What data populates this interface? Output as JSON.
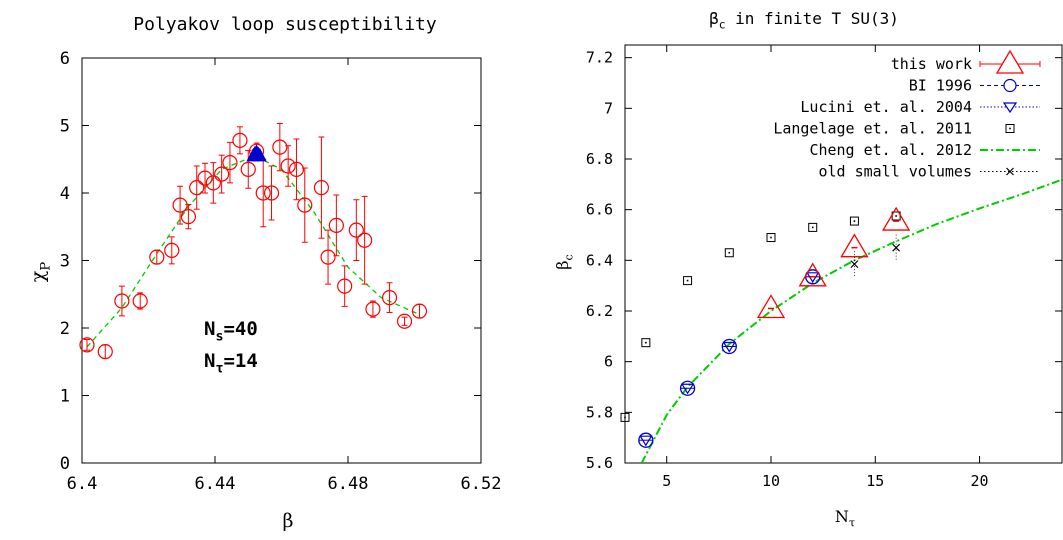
{
  "chart_data": [
    {
      "type": "scatter",
      "title": "Polyakov loop susceptibility",
      "xlabel": "β",
      "ylabel": "χ",
      "ylabel_sub": "P",
      "xlim": [
        6.4,
        6.52
      ],
      "ylim": [
        0,
        6
      ],
      "xticks": [
        6.4,
        6.44,
        6.48,
        6.52
      ],
      "xtick_labels": [
        "6.4",
        "6.44",
        "6.48",
        "6.52"
      ],
      "yticks": [
        0,
        1,
        2,
        3,
        4,
        5,
        6
      ],
      "ytick_labels": [
        "0",
        "1",
        "2",
        "3",
        "4",
        "5",
        "6"
      ],
      "grid": false,
      "annotations": [
        {
          "main": "N",
          "sub": "s",
          "rest": "=40"
        },
        {
          "main": "N",
          "sub": "τ",
          "rest": "=14"
        }
      ],
      "series": [
        {
          "marker": "circle",
          "color": "#ff0000",
          "x": [
            6.4015,
            6.407,
            6.412,
            6.4175,
            6.4225,
            6.427,
            6.4295,
            6.432,
            6.4345,
            6.437,
            6.4395,
            6.442,
            6.4445,
            6.4475,
            6.45,
            6.4525,
            6.4545,
            6.457,
            6.4595,
            6.462,
            6.4645,
            6.467,
            6.472,
            6.474,
            6.4765,
            6.479,
            6.4825,
            6.485,
            6.4875,
            6.4925,
            6.497,
            6.5015
          ],
          "y": [
            1.75,
            1.65,
            2.4,
            2.4,
            3.05,
            3.15,
            3.82,
            3.65,
            4.08,
            4.22,
            4.15,
            4.28,
            4.45,
            4.78,
            4.35,
            4.62,
            4.0,
            4.0,
            4.68,
            4.4,
            4.35,
            3.82,
            4.08,
            3.05,
            3.52,
            2.62,
            3.45,
            3.3,
            2.28,
            2.45,
            2.1,
            2.25
          ],
          "err": [
            0.08,
            0.1,
            0.22,
            0.12,
            0.1,
            0.2,
            0.28,
            0.18,
            0.32,
            0.22,
            0.3,
            0.28,
            0.3,
            0.2,
            0.28,
            0.12,
            0.5,
            0.4,
            0.35,
            0.3,
            0.45,
            0.55,
            0.75,
            0.4,
            0.45,
            0.3,
            0.45,
            0.65,
            0.12,
            0.22,
            0.06,
            0.1
          ]
        },
        {
          "marker": "triangle-up",
          "color": "#0000cc",
          "x": [
            6.4515,
            6.452,
            6.4525,
            6.453,
            6.4535
          ],
          "y": [
            4.55,
            4.58,
            4.6,
            4.57,
            4.55
          ]
        },
        {
          "type": "line",
          "style": "dashed",
          "color": "#00cc00",
          "x": [
            6.4015,
            6.412,
            6.4225,
            6.432,
            6.442,
            6.452,
            6.46,
            6.47,
            6.48,
            6.49,
            6.5015
          ],
          "y": [
            1.72,
            2.3,
            3.1,
            3.8,
            4.35,
            4.55,
            4.35,
            3.7,
            2.9,
            2.45,
            2.2
          ]
        }
      ]
    },
    {
      "type": "scatter",
      "title": "β",
      "title_sub": "c",
      "title_rest": " in finite T SU(3)",
      "xlabel": "N",
      "xlabel_sub": "τ",
      "ylabel": "β",
      "ylabel_sub": "c",
      "xlim": [
        3,
        24
      ],
      "ylim": [
        5.6,
        7.25
      ],
      "xticks": [
        5,
        10,
        15,
        20
      ],
      "xtick_labels": [
        "5",
        "10",
        "15",
        "20"
      ],
      "yticks": [
        5.6,
        5.8,
        6.0,
        6.2,
        6.4,
        6.6,
        6.8,
        7.0,
        7.2
      ],
      "ytick_labels": [
        "5.6",
        "5.8",
        "6",
        "6.2",
        "6.4",
        "6.6",
        "6.8",
        "7",
        "7.2"
      ],
      "grid": false,
      "legend": "top-right",
      "series": [
        {
          "name": "this work",
          "marker": "triangle-up-large",
          "color": "#ff0000",
          "x": [
            10,
            12,
            14,
            16
          ],
          "y": [
            6.21,
            6.335,
            6.45,
            6.555
          ]
        },
        {
          "name": "BI 1996",
          "marker": "circle",
          "color": "#0000cc",
          "x": [
            4,
            6,
            8,
            12
          ],
          "y": [
            5.69,
            5.895,
            6.06,
            6.335
          ]
        },
        {
          "name": "Lucini et. al. 2004",
          "marker": "triangle-down",
          "color": "#0000cc",
          "x": [
            4,
            6,
            8,
            12
          ],
          "y": [
            5.69,
            5.895,
            6.06,
            6.335
          ]
        },
        {
          "name": "Langelage et. al. 2011",
          "marker": "square-dot",
          "color": "#000000",
          "x": [
            3,
            4,
            6,
            8,
            10,
            12,
            14,
            16
          ],
          "y": [
            5.78,
            6.075,
            6.32,
            6.43,
            6.49,
            6.53,
            6.555,
            6.575
          ]
        },
        {
          "name": "Cheng et. al. 2012",
          "type": "line",
          "style": "dash-dot",
          "color": "#00cc00",
          "x": [
            3.8,
            5,
            6,
            8,
            10,
            12,
            14,
            16,
            18,
            20,
            22,
            24
          ],
          "y": [
            5.6,
            5.79,
            5.9,
            6.07,
            6.2,
            6.31,
            6.4,
            6.475,
            6.545,
            6.605,
            6.66,
            6.72
          ]
        },
        {
          "name": "old small volumes",
          "marker": "x",
          "color": "#000000",
          "x": [
            14,
            16
          ],
          "y": [
            6.385,
            6.45
          ]
        }
      ]
    }
  ]
}
